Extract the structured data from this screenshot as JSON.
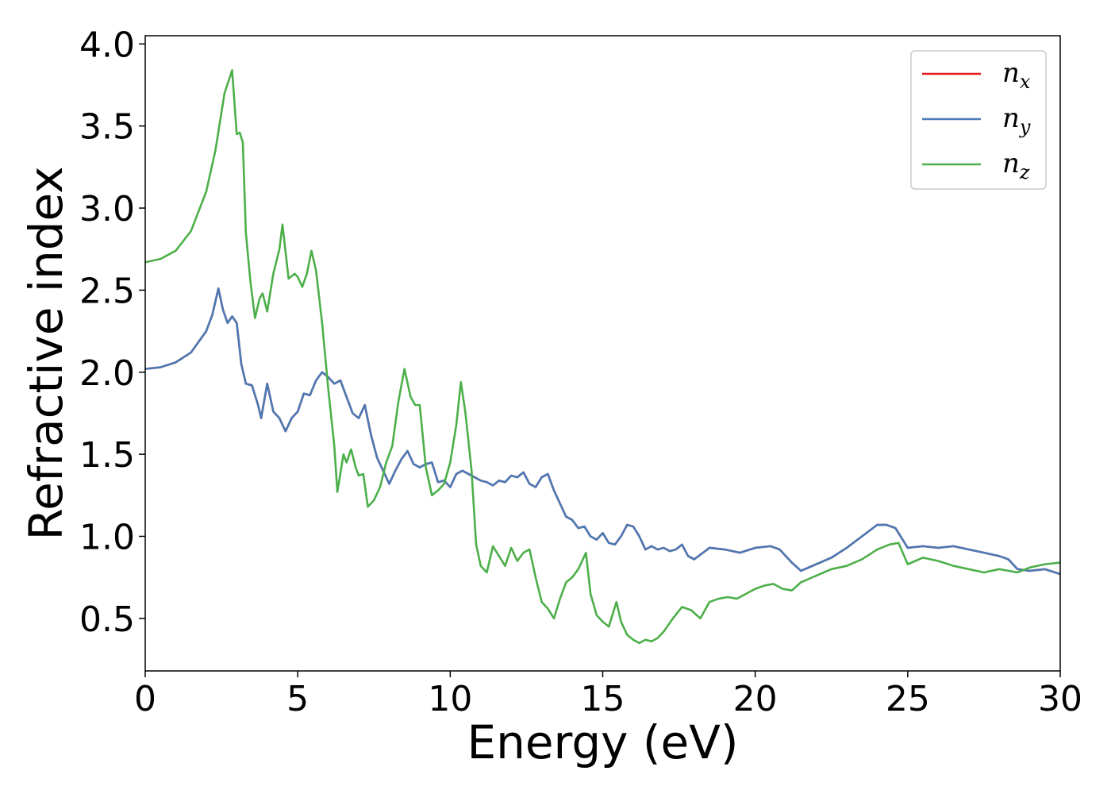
{
  "chart_data": {
    "type": "line",
    "title": "",
    "xlabel": "Energy (eV)",
    "ylabel": "Refractive index",
    "xlim": [
      0,
      30
    ],
    "ylim": [
      0.18,
      4.05
    ],
    "xticks": [
      0,
      5,
      10,
      15,
      20,
      25,
      30
    ],
    "xtick_labels": [
      "0",
      "5",
      "10",
      "15",
      "20",
      "25",
      "30"
    ],
    "yticks": [
      0.5,
      1.0,
      1.5,
      2.0,
      2.5,
      3.0,
      3.5,
      4.0
    ],
    "ytick_labels": [
      "0.5",
      "1.0",
      "1.5",
      "2.0",
      "2.5",
      "3.0",
      "3.5",
      "4.0"
    ],
    "grid": false,
    "legend_position": "top-right",
    "series": [
      {
        "name": "n",
        "subscript": "x",
        "color": "#e41a1c",
        "x": [
          0,
          0.5,
          1.0,
          1.5,
          2.0,
          2.2,
          2.4,
          2.55,
          2.7,
          2.85,
          3.0,
          3.15,
          3.3,
          3.5,
          3.7,
          3.8,
          4.0,
          4.2,
          4.4,
          4.6,
          4.8,
          5.0,
          5.2,
          5.4,
          5.6,
          5.8,
          6.0,
          6.2,
          6.4,
          6.6,
          6.8,
          7.0,
          7.2,
          7.4,
          7.6,
          7.8,
          8.0,
          8.2,
          8.4,
          8.6,
          8.8,
          9.0,
          9.2,
          9.4,
          9.6,
          9.8,
          10.0,
          10.2,
          10.4,
          10.6,
          10.8,
          11.0,
          11.2,
          11.4,
          11.6,
          11.8,
          12.0,
          12.2,
          12.4,
          12.6,
          12.8,
          13.0,
          13.2,
          13.4,
          13.6,
          13.8,
          14.0,
          14.2,
          14.4,
          14.6,
          14.8,
          15.0,
          15.2,
          15.4,
          15.6,
          15.8,
          16.0,
          16.2,
          16.4,
          16.6,
          16.8,
          17.0,
          17.2,
          17.4,
          17.6,
          17.8,
          18.0,
          18.5,
          19.0,
          19.5,
          20.0,
          20.5,
          20.8,
          21.0,
          21.2,
          21.5,
          22.0,
          22.5,
          23.0,
          23.5,
          24.0,
          24.3,
          24.6,
          25.0,
          25.5,
          26.0,
          26.5,
          27.0,
          27.5,
          28.0,
          28.3,
          28.6,
          29.0,
          29.5,
          30.0
        ],
        "y": [
          2.02,
          2.03,
          2.06,
          2.12,
          2.25,
          2.35,
          2.51,
          2.38,
          2.3,
          2.34,
          2.3,
          2.05,
          1.93,
          1.92,
          1.8,
          1.72,
          1.93,
          1.76,
          1.72,
          1.64,
          1.72,
          1.76,
          1.87,
          1.86,
          1.95,
          2.0,
          1.97,
          1.93,
          1.95,
          1.85,
          1.75,
          1.72,
          1.8,
          1.62,
          1.48,
          1.4,
          1.32,
          1.4,
          1.47,
          1.52,
          1.44,
          1.42,
          1.44,
          1.45,
          1.33,
          1.34,
          1.3,
          1.38,
          1.4,
          1.38,
          1.36,
          1.34,
          1.33,
          1.31,
          1.34,
          1.33,
          1.37,
          1.36,
          1.39,
          1.32,
          1.3,
          1.36,
          1.38,
          1.28,
          1.2,
          1.12,
          1.1,
          1.05,
          1.06,
          1.0,
          0.98,
          1.02,
          0.96,
          0.95,
          1.0,
          1.07,
          1.06,
          1.0,
          0.92,
          0.94,
          0.92,
          0.93,
          0.91,
          0.92,
          0.95,
          0.88,
          0.86,
          0.93,
          0.92,
          0.9,
          0.93,
          0.94,
          0.92,
          0.88,
          0.84,
          0.79,
          0.83,
          0.87,
          0.93,
          1.0,
          1.07,
          1.07,
          1.05,
          0.93,
          0.94,
          0.93,
          0.94,
          0.92,
          0.9,
          0.88,
          0.86,
          0.8,
          0.79,
          0.8,
          0.77
        ]
      },
      {
        "name": "n",
        "subscript": "y",
        "color": "#4a7ab5",
        "x": [
          0,
          0.5,
          1.0,
          1.5,
          2.0,
          2.2,
          2.4,
          2.55,
          2.7,
          2.85,
          3.0,
          3.15,
          3.3,
          3.5,
          3.7,
          3.8,
          4.0,
          4.2,
          4.4,
          4.6,
          4.8,
          5.0,
          5.2,
          5.4,
          5.6,
          5.8,
          6.0,
          6.2,
          6.4,
          6.6,
          6.8,
          7.0,
          7.2,
          7.4,
          7.6,
          7.8,
          8.0,
          8.2,
          8.4,
          8.6,
          8.8,
          9.0,
          9.2,
          9.4,
          9.6,
          9.8,
          10.0,
          10.2,
          10.4,
          10.6,
          10.8,
          11.0,
          11.2,
          11.4,
          11.6,
          11.8,
          12.0,
          12.2,
          12.4,
          12.6,
          12.8,
          13.0,
          13.2,
          13.4,
          13.6,
          13.8,
          14.0,
          14.2,
          14.4,
          14.6,
          14.8,
          15.0,
          15.2,
          15.4,
          15.6,
          15.8,
          16.0,
          16.2,
          16.4,
          16.6,
          16.8,
          17.0,
          17.2,
          17.4,
          17.6,
          17.8,
          18.0,
          18.5,
          19.0,
          19.5,
          20.0,
          20.5,
          20.8,
          21.0,
          21.2,
          21.5,
          22.0,
          22.5,
          23.0,
          23.5,
          24.0,
          24.3,
          24.6,
          25.0,
          25.5,
          26.0,
          26.5,
          27.0,
          27.5,
          28.0,
          28.3,
          28.6,
          29.0,
          29.5,
          30.0
        ],
        "y": [
          2.02,
          2.03,
          2.06,
          2.12,
          2.25,
          2.35,
          2.51,
          2.38,
          2.3,
          2.34,
          2.3,
          2.05,
          1.93,
          1.92,
          1.8,
          1.72,
          1.93,
          1.76,
          1.72,
          1.64,
          1.72,
          1.76,
          1.87,
          1.86,
          1.95,
          2.0,
          1.97,
          1.93,
          1.95,
          1.85,
          1.75,
          1.72,
          1.8,
          1.62,
          1.48,
          1.4,
          1.32,
          1.4,
          1.47,
          1.52,
          1.44,
          1.42,
          1.44,
          1.45,
          1.33,
          1.34,
          1.3,
          1.38,
          1.4,
          1.38,
          1.36,
          1.34,
          1.33,
          1.31,
          1.34,
          1.33,
          1.37,
          1.36,
          1.39,
          1.32,
          1.3,
          1.36,
          1.38,
          1.28,
          1.2,
          1.12,
          1.1,
          1.05,
          1.06,
          1.0,
          0.98,
          1.02,
          0.96,
          0.95,
          1.0,
          1.07,
          1.06,
          1.0,
          0.92,
          0.94,
          0.92,
          0.93,
          0.91,
          0.92,
          0.95,
          0.88,
          0.86,
          0.93,
          0.92,
          0.9,
          0.93,
          0.94,
          0.92,
          0.88,
          0.84,
          0.79,
          0.83,
          0.87,
          0.93,
          1.0,
          1.07,
          1.07,
          1.05,
          0.93,
          0.94,
          0.93,
          0.94,
          0.92,
          0.9,
          0.88,
          0.86,
          0.8,
          0.79,
          0.8,
          0.77
        ]
      },
      {
        "name": "n",
        "subscript": "z",
        "color": "#4daf4a",
        "x": [
          0,
          0.5,
          1.0,
          1.5,
          2.0,
          2.3,
          2.6,
          2.85,
          3.0,
          3.1,
          3.2,
          3.3,
          3.45,
          3.6,
          3.75,
          3.85,
          4.0,
          4.2,
          4.4,
          4.5,
          4.7,
          4.9,
          5.0,
          5.15,
          5.3,
          5.45,
          5.6,
          5.8,
          6.0,
          6.2,
          6.3,
          6.5,
          6.6,
          6.75,
          6.9,
          7.0,
          7.15,
          7.3,
          7.5,
          7.7,
          7.9,
          8.1,
          8.3,
          8.5,
          8.7,
          8.85,
          9.0,
          9.2,
          9.4,
          9.6,
          9.8,
          10.0,
          10.2,
          10.35,
          10.5,
          10.7,
          10.85,
          11.0,
          11.2,
          11.4,
          11.6,
          11.8,
          12.0,
          12.2,
          12.4,
          12.6,
          12.8,
          13.0,
          13.2,
          13.4,
          13.6,
          13.8,
          14.0,
          14.2,
          14.45,
          14.6,
          14.8,
          15.0,
          15.2,
          15.45,
          15.6,
          15.8,
          16.0,
          16.2,
          16.4,
          16.6,
          16.8,
          17.0,
          17.3,
          17.6,
          17.9,
          18.2,
          18.5,
          18.8,
          19.1,
          19.4,
          19.7,
          20.0,
          20.3,
          20.6,
          20.9,
          21.2,
          21.5,
          22.0,
          22.5,
          23.0,
          23.5,
          24.0,
          24.4,
          24.7,
          25.0,
          25.5,
          26.0,
          26.5,
          27.0,
          27.5,
          28.0,
          28.3,
          28.6,
          29.0,
          29.5,
          30.0
        ],
        "y": [
          2.67,
          2.69,
          2.74,
          2.86,
          3.1,
          3.35,
          3.7,
          3.84,
          3.45,
          3.46,
          3.4,
          2.85,
          2.55,
          2.33,
          2.45,
          2.48,
          2.37,
          2.6,
          2.75,
          2.9,
          2.57,
          2.6,
          2.58,
          2.52,
          2.6,
          2.74,
          2.62,
          2.3,
          1.9,
          1.55,
          1.27,
          1.5,
          1.45,
          1.53,
          1.42,
          1.37,
          1.38,
          1.18,
          1.22,
          1.3,
          1.45,
          1.55,
          1.82,
          2.02,
          1.85,
          1.8,
          1.8,
          1.42,
          1.25,
          1.28,
          1.32,
          1.45,
          1.68,
          1.94,
          1.75,
          1.4,
          0.95,
          0.82,
          0.78,
          0.94,
          0.88,
          0.82,
          0.93,
          0.85,
          0.9,
          0.92,
          0.75,
          0.6,
          0.56,
          0.5,
          0.62,
          0.72,
          0.75,
          0.8,
          0.9,
          0.65,
          0.52,
          0.48,
          0.45,
          0.6,
          0.48,
          0.4,
          0.37,
          0.35,
          0.37,
          0.36,
          0.38,
          0.42,
          0.5,
          0.57,
          0.55,
          0.5,
          0.6,
          0.62,
          0.63,
          0.62,
          0.65,
          0.68,
          0.7,
          0.71,
          0.68,
          0.67,
          0.72,
          0.76,
          0.8,
          0.82,
          0.86,
          0.92,
          0.95,
          0.96,
          0.83,
          0.87,
          0.85,
          0.82,
          0.8,
          0.78,
          0.8,
          0.79,
          0.78,
          0.81,
          0.83,
          0.84
        ]
      }
    ]
  }
}
